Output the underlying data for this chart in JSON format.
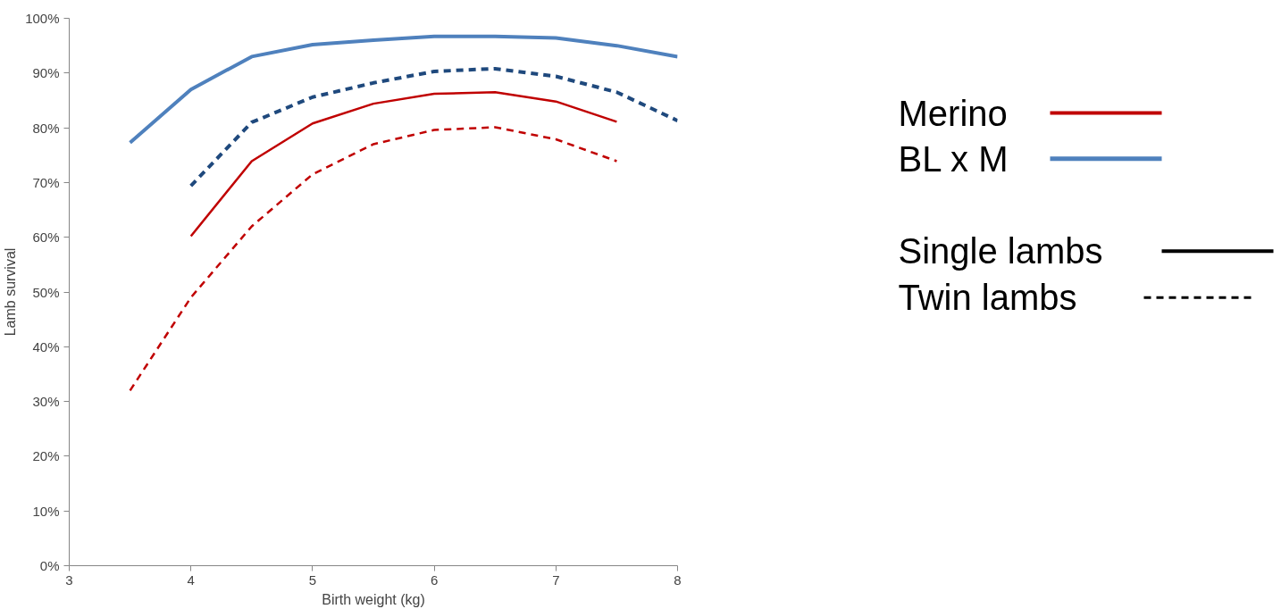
{
  "chart_data": {
    "type": "line",
    "xlabel": "Birth weight (kg)",
    "ylabel": "Lamb survival",
    "xlim": [
      3,
      8
    ],
    "xticks": [
      3,
      4,
      5,
      6,
      7,
      8
    ],
    "ylim": [
      0,
      1
    ],
    "yticks": [
      {
        "value": 0,
        "label": "0%"
      },
      {
        "value": 0.1,
        "label": "10%"
      },
      {
        "value": 0.2,
        "label": "20%"
      },
      {
        "value": 0.3,
        "label": "30%"
      },
      {
        "value": 0.4,
        "label": "40%"
      },
      {
        "value": 0.5,
        "label": "50%"
      },
      {
        "value": 0.6,
        "label": "60%"
      },
      {
        "value": 0.7,
        "label": "70%"
      },
      {
        "value": 0.8,
        "label": "80%"
      },
      {
        "value": 0.9,
        "label": "90%"
      },
      {
        "value": 1,
        "label": "100%"
      }
    ],
    "grid": false,
    "annotations": [
      "Merino",
      "BL x M",
      "Single lambs",
      "Twin lambs"
    ],
    "series": [
      {
        "color": "#c00000",
        "line_style": "solid",
        "x": [
          4,
          4.5,
          5,
          5.5,
          6,
          6.5,
          7,
          7.5
        ],
        "values": [
          0.602,
          0.739,
          0.808,
          0.844,
          0.862,
          0.865,
          0.848,
          0.811
        ]
      },
      {
        "color": "#c00000",
        "line_style": "dashed",
        "x": [
          3.5,
          4,
          4.5,
          5,
          5.5,
          6,
          6.5,
          7,
          7.5
        ],
        "values": [
          0.32,
          0.49,
          0.62,
          0.715,
          0.77,
          0.796,
          0.801,
          0.779,
          0.739
        ]
      },
      {
        "color": "#4f81bd",
        "line_style": "solid",
        "x": [
          3.5,
          4,
          4.5,
          5,
          5.5,
          6,
          6.5,
          7,
          7.5,
          8
        ],
        "values": [
          0.773,
          0.87,
          0.93,
          0.952,
          0.96,
          0.967,
          0.967,
          0.964,
          0.95,
          0.93
        ]
      },
      {
        "color": "#1f497d",
        "line_style": "dashed",
        "x": [
          4,
          4.5,
          5,
          5.5,
          6,
          6.5,
          7,
          7.5,
          8
        ],
        "values": [
          0.694,
          0.81,
          0.856,
          0.882,
          0.903,
          0.908,
          0.894,
          0.865,
          0.813
        ]
      }
    ]
  }
}
